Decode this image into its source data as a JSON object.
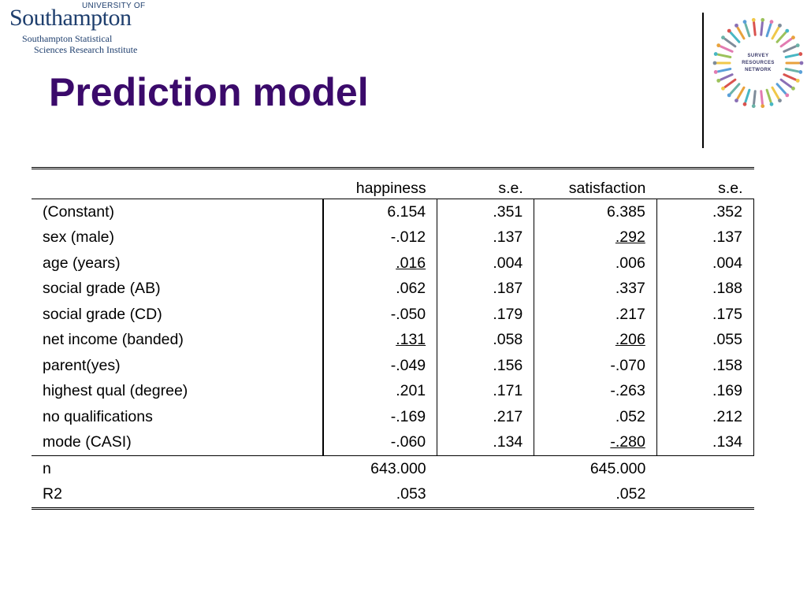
{
  "logo": {
    "small": "UNIVERSITY OF",
    "big": "Southampton",
    "line1": "Southampton Statistical",
    "line2": "Sciences Research Institute"
  },
  "srn": {
    "line1": "SURVEY",
    "line2": "RESOURCES",
    "line3": "NETWORK"
  },
  "title": "Prediction model",
  "table": {
    "headers": [
      "",
      "happiness",
      "s.e.",
      "satisfaction",
      "s.e."
    ],
    "rows": [
      {
        "label": "(Constant)",
        "h": "6.154",
        "hse": ".351",
        "s": "6.385",
        "sse": ".352"
      },
      {
        "label": "sex (male)",
        "h": "-.012",
        "hse": ".137",
        "s": ".292",
        "sse": ".137"
      },
      {
        "label": "age (years)",
        "h": ".016",
        "hse": ".004",
        "s": ".006",
        "sse": ".004"
      },
      {
        "label": "social grade (AB)",
        "h": ".062",
        "hse": ".187",
        "s": ".337",
        "sse": ".188"
      },
      {
        "label": "social grade (CD)",
        "h": "-.050",
        "hse": ".179",
        "s": ".217",
        "sse": ".175"
      },
      {
        "label": "net income (banded)",
        "h": ".131",
        "hse": ".058",
        "s": ".206",
        "sse": ".055"
      },
      {
        "label": "parent(yes)",
        "h": "-.049",
        "hse": ".156",
        "s": "-.070",
        "sse": ".158"
      },
      {
        "label": "highest qual (degree)",
        "h": ".201",
        "hse": ".171",
        "s": "-.263",
        "sse": ".169"
      },
      {
        "label": "no qualifications",
        "h": "-.169",
        "hse": ".217",
        "s": ".052",
        "sse": ".212"
      },
      {
        "label": "mode (CASI)",
        "h": "-.060",
        "hse": ".134",
        "s": "-.280",
        "sse": ".134"
      }
    ],
    "footer": [
      {
        "label": "n",
        "h": "643.000",
        "s": "645.000"
      },
      {
        "label": "R2",
        "h": ".053",
        "s": ".052"
      }
    ]
  }
}
